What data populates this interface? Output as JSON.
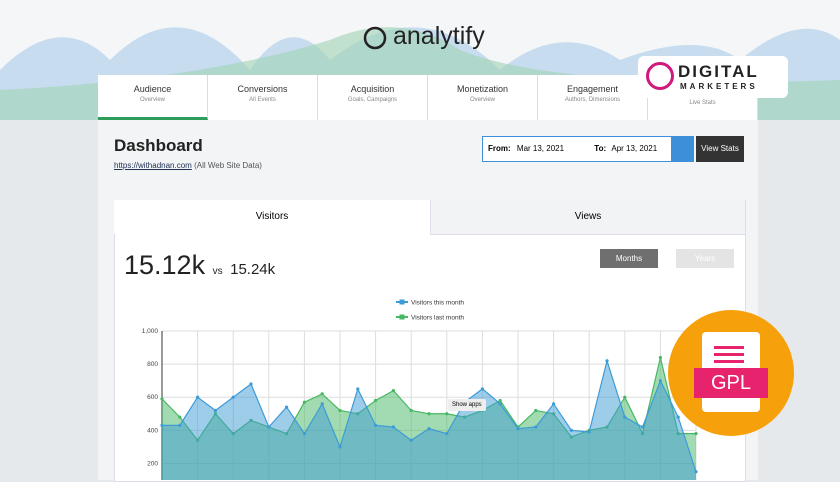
{
  "brand": "analytify",
  "badge": {
    "line1": "DIGITAL",
    "line2": "MARKETERS"
  },
  "gpl": "GPL",
  "nav": [
    {
      "title": "Audience",
      "sub": "Overview"
    },
    {
      "title": "Conversions",
      "sub": "All Events"
    },
    {
      "title": "Acquisition",
      "sub": "Goals, Campaigns"
    },
    {
      "title": "Monetization",
      "sub": "Overview"
    },
    {
      "title": "Engagement",
      "sub": "Authors, Dimensions"
    },
    {
      "title": null,
      "sub": "Live Stats"
    }
  ],
  "dashboard": {
    "title": "Dashboard",
    "link": "https://withadnan.com",
    "link_note": "(All Web Site Data)"
  },
  "date_range": {
    "from_label": "From:",
    "from": "Mar 13, 2021",
    "to_label": "To:",
    "to": "Apr 13, 2021",
    "button": "View Stats"
  },
  "card": {
    "tabs": [
      "Visitors",
      "Views"
    ],
    "current": "15.12k",
    "vs": "vs",
    "previous": "15.24k",
    "periods": [
      "Months",
      "Years"
    ],
    "tooltip": "Show apps"
  },
  "chart_data": {
    "type": "line",
    "grid": true,
    "categories": [
      null,
      null,
      null,
      null,
      null,
      null,
      null,
      null,
      null,
      null,
      null,
      null,
      null,
      null,
      null,
      null,
      null,
      null,
      null,
      null,
      null,
      null,
      null,
      null,
      null,
      null,
      null,
      null,
      null,
      null,
      null
    ],
    "series": [
      {
        "name": "Visitors this month",
        "color": "#3d9bd6",
        "values": [
          430,
          430,
          600,
          520,
          600,
          680,
          420,
          540,
          380,
          560,
          300,
          650,
          430,
          420,
          340,
          410,
          380,
          570,
          650,
          560,
          410,
          420,
          560,
          400,
          390,
          820,
          480,
          420,
          700,
          480,
          150
        ]
      },
      {
        "name": "Visitors last month",
        "color": "#45b863",
        "values": [
          590,
          480,
          340,
          500,
          380,
          460,
          420,
          380,
          570,
          620,
          520,
          500,
          580,
          640,
          520,
          500,
          500,
          480,
          520,
          580,
          420,
          520,
          500,
          360,
          400,
          420,
          600,
          380,
          840,
          380,
          380
        ]
      }
    ],
    "ylim": [
      100,
      1000
    ],
    "yticks": [
      200,
      400,
      600,
      800,
      {
        "value": 1000,
        "label": "1,000"
      }
    ]
  }
}
